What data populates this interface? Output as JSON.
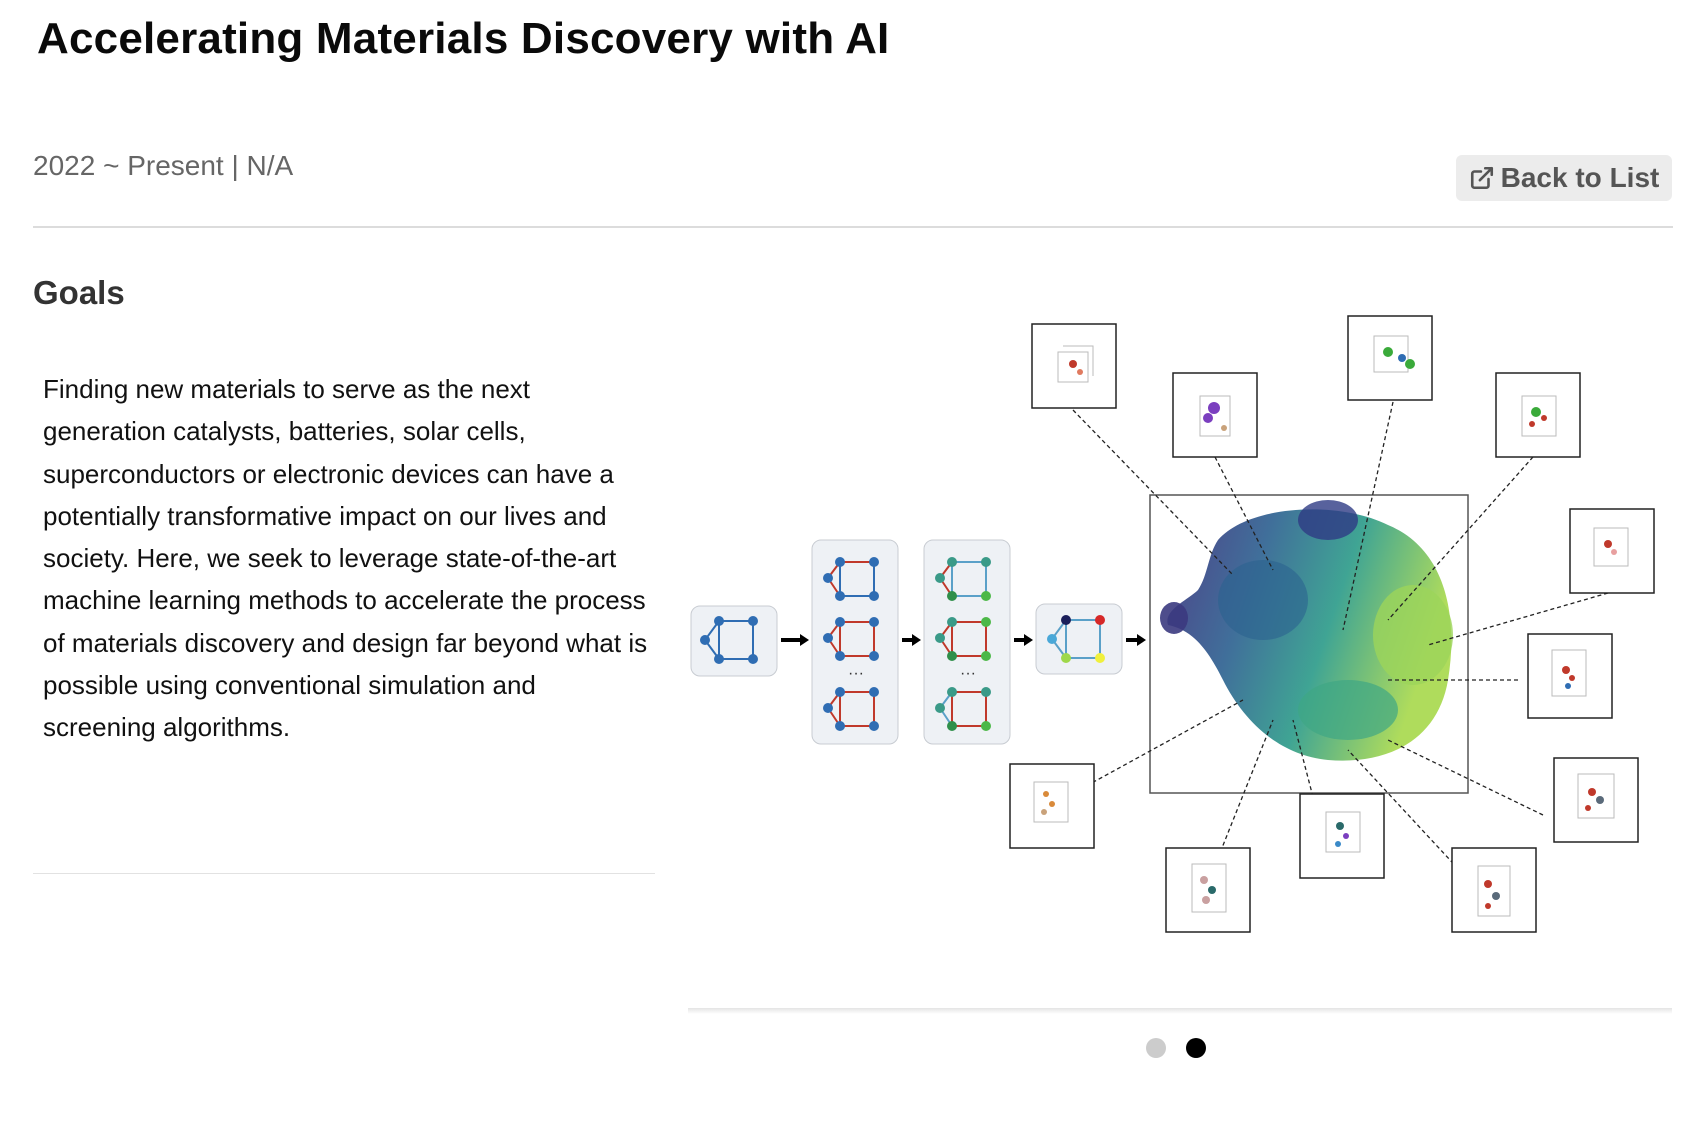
{
  "project": {
    "title": "Accelerating Materials Discovery with AI",
    "meta": "2022 ~ Present | N/A",
    "back_button_label": "Back to List",
    "back_button_icon": "external-link-icon"
  },
  "goals": {
    "heading": "Goals",
    "text": "Finding new materials to serve as the next generation catalysts, batteries, solar cells, superconductors or electronic devices can have a potentially transformative impact on our lives and society. Here, we seek to leverage state-of-the-art machine learning methods to accelerate the process of materials discovery and design far beyond what is possible using conventional simulation and screening algorithms."
  },
  "carousel": {
    "slide_count": 2,
    "active_index": 1
  },
  "colors": {
    "text": "#111111",
    "muted": "#666666",
    "button_bg": "#ececec",
    "dot_inactive": "#cccccc",
    "dot_active": "#000000"
  }
}
